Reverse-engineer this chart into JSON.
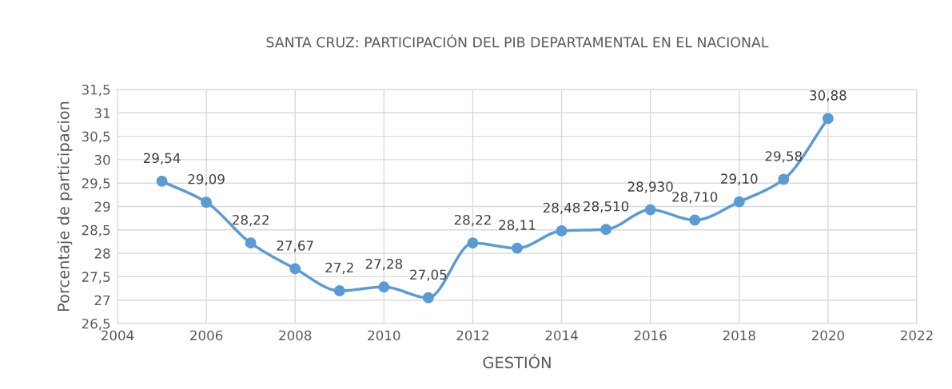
{
  "chart_data": {
    "type": "line",
    "title": "SANTA CRUZ: PARTICIPACIÓN DEL PIB DEPARTAMENTAL EN EL NACIONAL",
    "xlabel": "GESTIÓN",
    "ylabel": "Porcentaje de participacion",
    "x": [
      2005,
      2006,
      2007,
      2008,
      2009,
      2010,
      2011,
      2012,
      2013,
      2014,
      2015,
      2016,
      2017,
      2018,
      2019,
      2020
    ],
    "series": [
      {
        "color": "#5b9bd5",
        "values": [
          29.54,
          29.09,
          28.22,
          27.67,
          27.2,
          27.28,
          27.05,
          28.22,
          28.11,
          28.48,
          28.51,
          28.93,
          28.71,
          29.1,
          29.58,
          30.88
        ],
        "value_labels": [
          "29,54",
          "29,09",
          "28,22",
          "27,67",
          "27,2",
          "27,28",
          "27,05",
          "28,22",
          "28,11",
          "28,48",
          null,
          null,
          null,
          "29,10",
          "29,58",
          "30,88"
        ]
      }
    ],
    "xlim": [
      2004,
      2022
    ],
    "xticks": [
      2004,
      2006,
      2008,
      2010,
      2012,
      2014,
      2016,
      2018,
      2020,
      2022
    ],
    "ylim": [
      26.5,
      31.5
    ],
    "yticks": [
      {
        "value": 26.5,
        "label": "26,5"
      },
      27,
      {
        "value": 27.5,
        "label": "27,5"
      },
      28,
      {
        "value": 28.5,
        "label": "28,5"
      },
      29,
      {
        "value": 29.5,
        "label": "29,5"
      },
      30,
      {
        "value": 30.5,
        "label": "30,5"
      },
      31,
      {
        "value": 31.5,
        "label": "31,5"
      }
    ],
    "annotations": [
      {
        "text": "28,510",
        "x": 2015,
        "y": 28.51
      },
      {
        "text": "28,930",
        "x": 2016,
        "y": 28.93
      },
      {
        "text": "28,710",
        "x": 2017,
        "y": 28.71
      }
    ],
    "grid": true,
    "marker": "circle",
    "line_style": "solid"
  }
}
